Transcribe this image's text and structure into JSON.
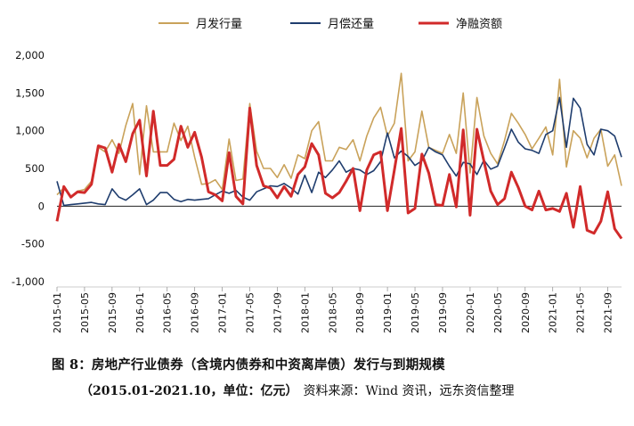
{
  "chart_data": {
    "type": "line",
    "title": "",
    "xlabel": "",
    "ylabel": "",
    "ylim": [
      -1000,
      2000
    ],
    "yticks": [
      -1000,
      -500,
      0,
      500,
      1000,
      1500,
      2000
    ],
    "ytick_labels": [
      "-1,000",
      "-500",
      "0",
      "500",
      "1,000",
      "1,500",
      "2,000"
    ],
    "xtick_labels": [
      "2015-01",
      "2015-05",
      "2015-09",
      "2016-01",
      "2016-05",
      "2016-09",
      "2017-01",
      "2017-05",
      "2017-09",
      "2018-01",
      "2018-05",
      "2018-09",
      "2019-01",
      "2019-05",
      "2019-09",
      "2020-01",
      "2020-05",
      "2020-09",
      "2021-01",
      "2021-05",
      "2021-09"
    ],
    "x_start": "2015-01",
    "legend_position": "top-center",
    "series": [
      {
        "name": "月发行量",
        "color": "#c9a25a",
        "values": [
          150,
          240,
          120,
          200,
          220,
          330,
          780,
          720,
          880,
          700,
          1070,
          1360,
          420,
          1330,
          720,
          720,
          720,
          1100,
          870,
          1060,
          650,
          290,
          300,
          350,
          220,
          890,
          340,
          360,
          1360,
          730,
          500,
          500,
          380,
          550,
          370,
          680,
          630,
          1000,
          1120,
          600,
          600,
          780,
          750,
          880,
          600,
          930,
          1170,
          1310,
          930,
          1100,
          1760,
          600,
          720,
          1260,
          780,
          740,
          700,
          950,
          700,
          1500,
          440,
          1440,
          930,
          700,
          560,
          870,
          1230,
          1100,
          950,
          760,
          900,
          1050,
          680,
          1680,
          520,
          1000,
          900,
          640,
          900,
          1020,
          530,
          680,
          270
        ]
      },
      {
        "name": "月偿还量",
        "color": "#1f3d6e",
        "values": [
          330,
          10,
          20,
          30,
          40,
          50,
          30,
          20,
          230,
          120,
          80,
          150,
          230,
          20,
          80,
          180,
          180,
          90,
          60,
          90,
          80,
          90,
          100,
          150,
          200,
          170,
          210,
          120,
          80,
          190,
          230,
          270,
          260,
          300,
          240,
          160,
          410,
          180,
          450,
          380,
          480,
          600,
          450,
          500,
          480,
          420,
          470,
          590,
          970,
          640,
          730,
          660,
          540,
          600,
          780,
          720,
          680,
          530,
          400,
          580,
          560,
          420,
          610,
          490,
          530,
          770,
          1020,
          850,
          760,
          740,
          700,
          950,
          1000,
          1440,
          780,
          1430,
          1300,
          820,
          680,
          1020,
          1000,
          930,
          650
        ]
      },
      {
        "name": "净融资额",
        "color": "#d12a2a",
        "values": [
          -200,
          260,
          120,
          190,
          180,
          290,
          800,
          770,
          450,
          820,
          590,
          960,
          1140,
          400,
          1260,
          540,
          540,
          620,
          1060,
          780,
          980,
          650,
          190,
          150,
          70,
          710,
          130,
          30,
          1300,
          540,
          270,
          240,
          110,
          260,
          130,
          420,
          520,
          830,
          680,
          170,
          110,
          180,
          330,
          500,
          -60,
          480,
          680,
          720,
          -60,
          480,
          1030,
          -90,
          -30,
          690,
          440,
          20,
          10,
          420,
          -10,
          1010,
          -120,
          1020,
          600,
          200,
          20,
          100,
          450,
          250,
          0,
          -50,
          200,
          -50,
          -30,
          -70,
          170,
          -280,
          260,
          -320,
          -360,
          -200,
          190,
          -300,
          -430
        ]
      }
    ]
  }
}
